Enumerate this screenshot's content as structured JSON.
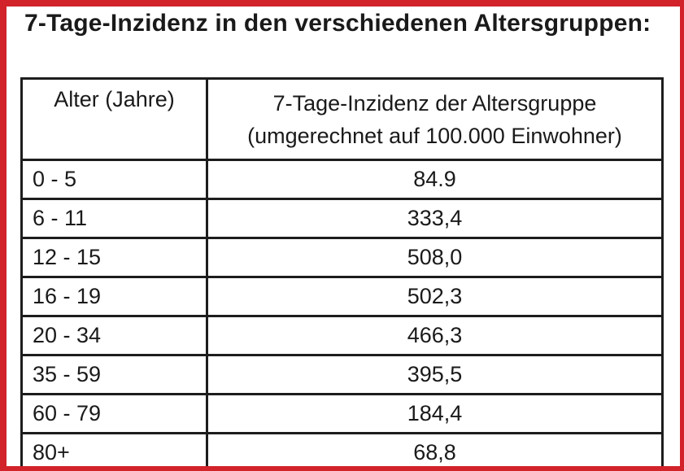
{
  "page": {
    "title": "7-Tage-Inzidenz in den verschiedenen Altersgruppen:",
    "frame_color": "#d2222a",
    "text_color": "#1a1a1a"
  },
  "table": {
    "header": {
      "age_col": "Alter (Jahre)",
      "value_col_line1": "7-Tage-Inzidenz der Altersgruppe",
      "value_col_line2": "(umgerechnet auf 100.000 Einwohner)"
    },
    "rows": [
      {
        "age": "0 - 5",
        "incidence": "84.9"
      },
      {
        "age": "6 - 11",
        "incidence": "333,4"
      },
      {
        "age": "12 - 15",
        "incidence": "508,0"
      },
      {
        "age": "16 - 19",
        "incidence": "502,3"
      },
      {
        "age": "20 - 34",
        "incidence": "466,3"
      },
      {
        "age": "35 - 59",
        "incidence": "395,5"
      },
      {
        "age": "60 - 79",
        "incidence": "184,4"
      },
      {
        "age": "80+",
        "incidence": "68,8"
      }
    ]
  }
}
